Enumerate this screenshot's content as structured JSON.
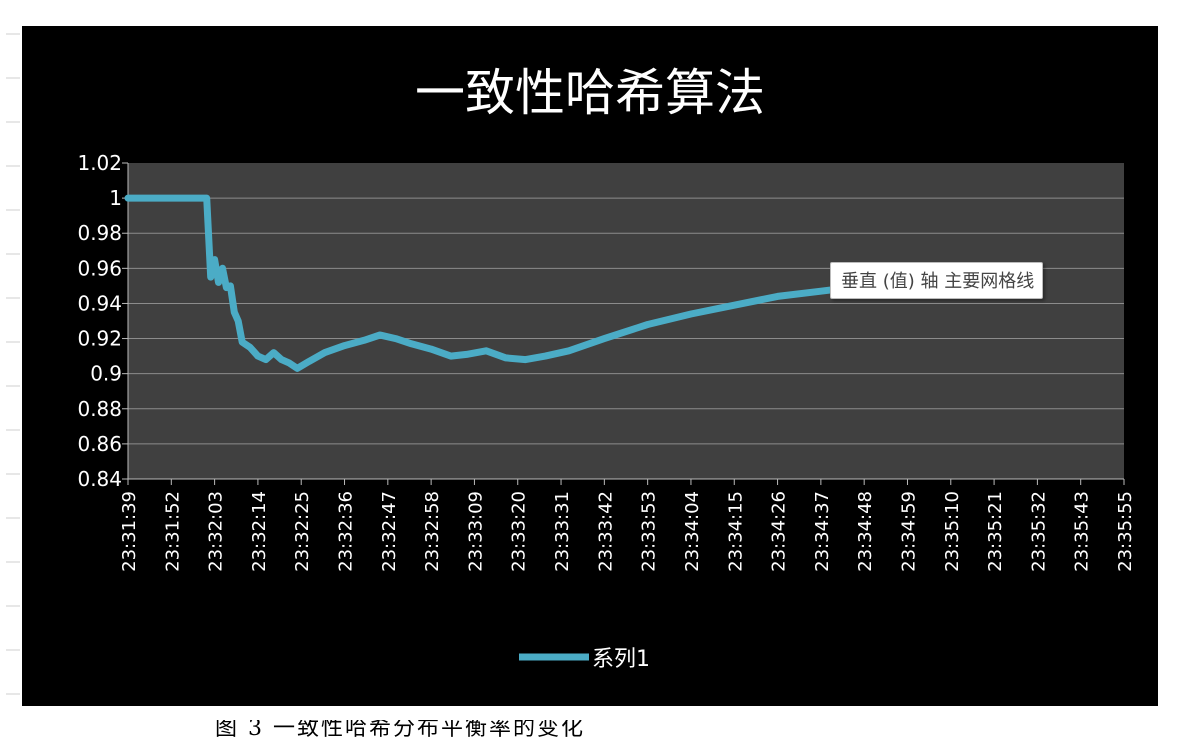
{
  "chart_data": {
    "type": "line",
    "title": "一致性哈希算法",
    "xlabel": "",
    "ylabel": "",
    "ylim": [
      0.84,
      1.02
    ],
    "y_ticks": [
      "1.02",
      "1",
      "0.98",
      "0.96",
      "0.94",
      "0.92",
      "0.9",
      "0.88",
      "0.86",
      "0.84"
    ],
    "x_tick_labels": [
      "23:31:39",
      "23:31:52",
      "23:32:03",
      "23:32:14",
      "23:32:25",
      "23:32:36",
      "23:32:47",
      "23:32:58",
      "23:33:09",
      "23:33:20",
      "23:33:31",
      "23:33:42",
      "23:33:53",
      "23:34:04",
      "23:34:15",
      "23:34:26",
      "23:34:37",
      "23:34:48",
      "23:34:59",
      "23:35:10",
      "23:35:21",
      "23:35:32",
      "23:35:43",
      "23:35:55"
    ],
    "grid": true,
    "legend_position": "bottom",
    "series": [
      {
        "name": "系列1",
        "color": "#4bacc6",
        "points": [
          [
            "23:31:39",
            1.0
          ],
          [
            "23:31:52",
            1.0
          ],
          [
            "23:32:01",
            1.0
          ],
          [
            "23:32:02",
            0.955
          ],
          [
            "23:32:03",
            0.965
          ],
          [
            "23:32:04",
            0.952
          ],
          [
            "23:32:05",
            0.96
          ],
          [
            "23:32:06",
            0.949
          ],
          [
            "23:32:07",
            0.95
          ],
          [
            "23:32:08",
            0.935
          ],
          [
            "23:32:09",
            0.93
          ],
          [
            "23:32:10",
            0.918
          ],
          [
            "23:32:12",
            0.915
          ],
          [
            "23:32:14",
            0.91
          ],
          [
            "23:32:16",
            0.908
          ],
          [
            "23:32:18",
            0.912
          ],
          [
            "23:32:20",
            0.908
          ],
          [
            "23:32:22",
            0.906
          ],
          [
            "23:32:24",
            0.903
          ],
          [
            "23:32:27",
            0.907
          ],
          [
            "23:32:31",
            0.912
          ],
          [
            "23:32:36",
            0.916
          ],
          [
            "23:32:41",
            0.919
          ],
          [
            "23:32:45",
            0.922
          ],
          [
            "23:32:49",
            0.92
          ],
          [
            "23:32:53",
            0.917
          ],
          [
            "23:32:58",
            0.914
          ],
          [
            "23:33:03",
            0.91
          ],
          [
            "23:33:07",
            0.911
          ],
          [
            "23:33:12",
            0.913
          ],
          [
            "23:33:17",
            0.909
          ],
          [
            "23:33:22",
            0.908
          ],
          [
            "23:33:27",
            0.91
          ],
          [
            "23:33:33",
            0.913
          ],
          [
            "23:33:42",
            0.92
          ],
          [
            "23:33:53",
            0.928
          ],
          [
            "23:34:04",
            0.934
          ],
          [
            "23:34:15",
            0.939
          ],
          [
            "23:34:26",
            0.944
          ],
          [
            "23:34:37",
            0.947
          ],
          [
            "23:34:48",
            0.95
          ],
          [
            "23:34:59",
            0.952
          ]
        ]
      }
    ]
  },
  "tooltip": {
    "text": "垂直 (值) 轴 主要网格线"
  },
  "caption": {
    "text": "图 3 一致性哈希分布平衡率的变化"
  },
  "colors": {
    "background": "#000000",
    "plot_area": "#404040",
    "gridline": "#8c8c8c",
    "text": "#ffffff",
    "series": "#4bacc6"
  }
}
